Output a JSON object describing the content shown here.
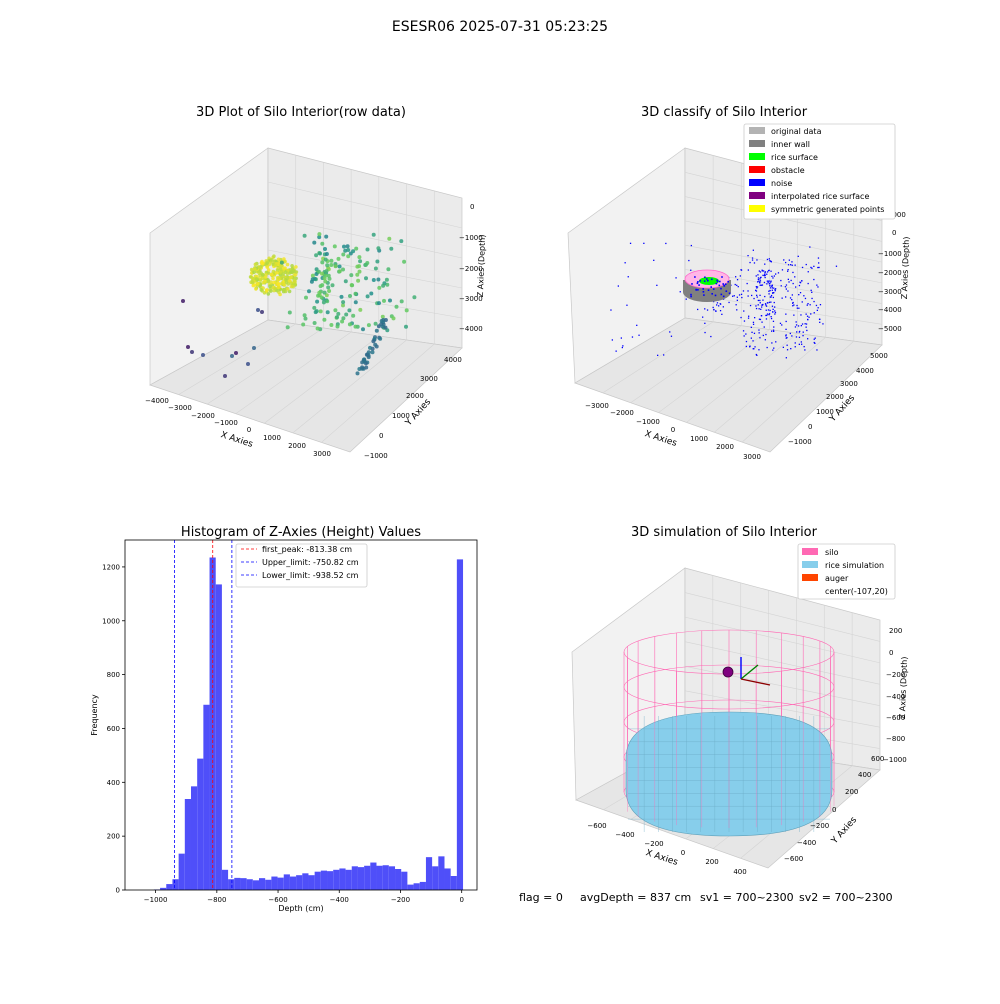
{
  "figure": {
    "suptitle": "ESESR06 2025-07-31 05:23:25",
    "footer": {
      "flag": "flag = 0",
      "avg_depth": "avgDepth = 837 cm",
      "sv1": "sv1 = 700~2300",
      "sv2": "sv2 = 700~2300"
    }
  },
  "colors": {
    "hist_bar": "#4f4ff9",
    "first_peak": "#ff0000",
    "limits": "#0000ff",
    "silo": "#ff69b4",
    "rice": "#87ceeb",
    "auger": "#ff4500",
    "center_marker": "#800080",
    "viridis_low": "#440154",
    "viridis_mid": "#21908c",
    "viridis_high": "#fde725",
    "pane": "#f2f2f2"
  },
  "chart_data": [
    {
      "type": "scatter",
      "title": "3D Plot of Silo Interior(row data)",
      "xlabel": "X Axies",
      "ylabel": "Y Axies",
      "zlabel": "Z Axies (Depth)",
      "x_ticks": [
        "−4000",
        "−3000",
        "−2000",
        "−1000",
        "0",
        "1000",
        "2000",
        "3000"
      ],
      "y_ticks": [
        "−1000",
        "0",
        "1000",
        "2000",
        "3000",
        "4000"
      ],
      "z_ticks": [
        "0",
        "−1000",
        "−2000",
        "−3000",
        "−4000"
      ],
      "colormap": "viridis"
    },
    {
      "type": "scatter",
      "title": "3D classify of Silo Interior",
      "xlabel": "X Axies",
      "ylabel": "Y Axies",
      "zlabel": "Z Axies (Depth)",
      "x_ticks": [
        "−3000",
        "−2000",
        "−1000",
        "0",
        "1000",
        "2000",
        "3000"
      ],
      "y_ticks": [
        "−1000",
        "0",
        "1000",
        "2000",
        "3000",
        "4000",
        "5000"
      ],
      "z_ticks": [
        "1000",
        "0",
        "−1000",
        "−2000",
        "−3000",
        "−4000",
        "−5000"
      ],
      "legend_position": "top-right",
      "legend": [
        {
          "label": "original data",
          "color": "#b3b3b3"
        },
        {
          "label": "inner wall",
          "color": "#808080"
        },
        {
          "label": "rice surface",
          "color": "#00ff00"
        },
        {
          "label": "obstacle",
          "color": "#ff0000"
        },
        {
          "label": "noise",
          "color": "#0000ff"
        },
        {
          "label": "interpolated rice surface",
          "color": "#800080"
        },
        {
          "label": "symmetric generated points",
          "color": "#ffff00"
        }
      ]
    },
    {
      "type": "bar",
      "title": "Histogram of Z-Axies (Height) Values",
      "xlabel": "Depth (cm)",
      "ylabel": "Frequency",
      "xlim": [
        -1100,
        50
      ],
      "ylim": [
        0,
        1300
      ],
      "x_ticks": [
        -1000,
        -800,
        -600,
        -400,
        -200,
        0
      ],
      "x_tick_labels": [
        "−1000",
        "−800",
        "−600",
        "−400",
        "−200",
        "0"
      ],
      "y_ticks": [
        0,
        200,
        400,
        600,
        800,
        1000,
        1200
      ],
      "bin_width": 20.2,
      "bins": [
        {
          "x0": -1005.6,
          "v": 2
        },
        {
          "x0": -985.4,
          "v": 8
        },
        {
          "x0": -965.2,
          "v": 22
        },
        {
          "x0": -945.0,
          "v": 40
        },
        {
          "x0": -924.8,
          "v": 135
        },
        {
          "x0": -904.6,
          "v": 338
        },
        {
          "x0": -884.4,
          "v": 385
        },
        {
          "x0": -864.2,
          "v": 488
        },
        {
          "x0": -844.0,
          "v": 688
        },
        {
          "x0": -823.8,
          "v": 1235
        },
        {
          "x0": -803.6,
          "v": 1135
        },
        {
          "x0": -783.4,
          "v": 75
        },
        {
          "x0": -763.2,
          "v": 40
        },
        {
          "x0": -743.0,
          "v": 45
        },
        {
          "x0": -722.8,
          "v": 44
        },
        {
          "x0": -702.6,
          "v": 40
        },
        {
          "x0": -682.4,
          "v": 36
        },
        {
          "x0": -662.2,
          "v": 44
        },
        {
          "x0": -642.0,
          "v": 38
        },
        {
          "x0": -621.8,
          "v": 50
        },
        {
          "x0": -601.6,
          "v": 46
        },
        {
          "x0": -581.4,
          "v": 58
        },
        {
          "x0": -561.2,
          "v": 50
        },
        {
          "x0": -541.0,
          "v": 55
        },
        {
          "x0": -520.8,
          "v": 62
        },
        {
          "x0": -500.6,
          "v": 55
        },
        {
          "x0": -480.4,
          "v": 68
        },
        {
          "x0": -460.2,
          "v": 72
        },
        {
          "x0": -440.0,
          "v": 70
        },
        {
          "x0": -419.8,
          "v": 75
        },
        {
          "x0": -399.6,
          "v": 80
        },
        {
          "x0": -379.4,
          "v": 75
        },
        {
          "x0": -359.2,
          "v": 88
        },
        {
          "x0": -339.0,
          "v": 85
        },
        {
          "x0": -318.8,
          "v": 90
        },
        {
          "x0": -298.6,
          "v": 102
        },
        {
          "x0": -278.4,
          "v": 90
        },
        {
          "x0": -258.2,
          "v": 92
        },
        {
          "x0": -238.0,
          "v": 88
        },
        {
          "x0": -217.8,
          "v": 78
        },
        {
          "x0": -197.6,
          "v": 68
        },
        {
          "x0": -177.4,
          "v": 20
        },
        {
          "x0": -157.2,
          "v": 25
        },
        {
          "x0": -137.0,
          "v": 30
        },
        {
          "x0": -116.8,
          "v": 122
        },
        {
          "x0": -96.6,
          "v": 88
        },
        {
          "x0": -76.4,
          "v": 125
        },
        {
          "x0": -56.2,
          "v": 80
        },
        {
          "x0": -36.0,
          "v": 52
        },
        {
          "x0": -15.8,
          "v": 1228
        }
      ],
      "lines": [
        {
          "label": "first_peak: -813.38 cm",
          "x": -813.38,
          "color": "#ff0000"
        },
        {
          "label": "Upper_limit: -750.82 cm",
          "x": -750.82,
          "color": "#0000ff"
        },
        {
          "label": "Lower_limit: -938.52 cm",
          "x": -938.52,
          "color": "#0000ff"
        }
      ],
      "legend_position": "top-center"
    },
    {
      "type": "scatter",
      "title": "3D simulation of Silo Interior",
      "xlabel": "X Axies",
      "ylabel": "Y Axies",
      "zlabel": "Z Axies (Depth)",
      "x_ticks": [
        "−600",
        "−400",
        "−200",
        "0",
        "200",
        "400"
      ],
      "y_ticks": [
        "−600",
        "−400",
        "−200",
        "0",
        "200",
        "400",
        "600"
      ],
      "z_ticks": [
        "200",
        "0",
        "−200",
        "−400",
        "−600",
        "−800",
        "−1000"
      ],
      "legend_position": "top-right",
      "legend": [
        {
          "label": "silo",
          "color": "#ff69b4"
        },
        {
          "label": "rice simulation",
          "color": "#87ceeb"
        },
        {
          "label": "auger",
          "color": "#ff4500"
        },
        {
          "label": "center(-107,20)",
          "color": ""
        }
      ]
    }
  ]
}
